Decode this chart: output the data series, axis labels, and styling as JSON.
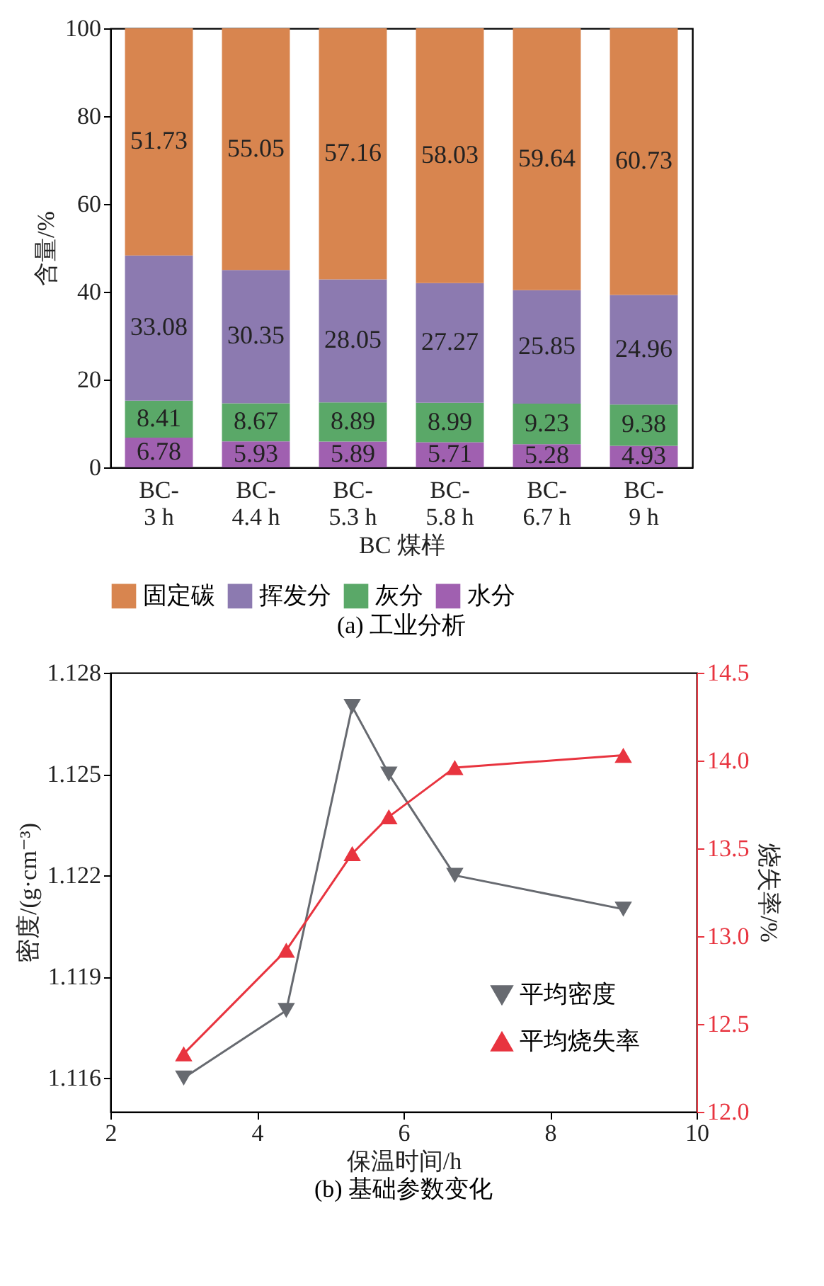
{
  "chart_data": [
    {
      "type": "bar",
      "stacked": true,
      "title": "(a) 工业分析",
      "xlabel": "BC 煤样",
      "ylabel": "含量/%",
      "categories": [
        "BC-3 h",
        "BC-4.4 h",
        "BC-5.3 h",
        "BC-5.8 h",
        "BC-6.7 h",
        "BC-9 h"
      ],
      "series": [
        {
          "name": "水分",
          "color": "#a060b0",
          "values": [
            6.78,
            5.93,
            5.89,
            5.71,
            5.28,
            4.93
          ]
        },
        {
          "name": "灰分",
          "color": "#5aa868",
          "values": [
            8.41,
            8.67,
            8.89,
            8.99,
            9.23,
            9.38
          ]
        },
        {
          "name": "挥发分",
          "color": "#8c7ab0",
          "values": [
            33.08,
            30.35,
            28.05,
            27.27,
            25.85,
            24.96
          ]
        },
        {
          "name": "固定碳",
          "color": "#d8854f",
          "values": [
            51.73,
            55.05,
            57.16,
            58.03,
            59.64,
            60.73
          ]
        }
      ],
      "ylim": [
        0,
        100
      ],
      "yticks": [
        0,
        20,
        40,
        60,
        80,
        100
      ],
      "data_labels": true,
      "legend": "bottom",
      "grid": false
    },
    {
      "type": "line",
      "title": "(b) 基础参数变化",
      "xlabel": "保温时间/h",
      "ylabel": "密度/(g·cm⁻³)",
      "y2label": "烧失率/%",
      "x": [
        3,
        4.4,
        5.3,
        5.8,
        6.7,
        9
      ],
      "series": [
        {
          "name": "平均密度",
          "color": "#676a70",
          "marker": "triangle-down",
          "values": [
            1.116,
            1.118,
            1.127,
            1.125,
            1.122,
            1.121
          ]
        },
        {
          "name": "平均烧失率",
          "color": "#e8343f",
          "marker": "triangle",
          "axis": "y2",
          "values": [
            12.33,
            12.92,
            13.47,
            13.68,
            13.96,
            14.03
          ]
        }
      ],
      "xlim": [
        2,
        10
      ],
      "xticks": [
        2,
        4,
        6,
        8,
        10
      ],
      "ylim": [
        1.115,
        1.128
      ],
      "yticks": [
        1.116,
        1.119,
        1.122,
        1.125,
        1.128
      ],
      "y2lim": [
        12,
        14.5
      ],
      "y2ticks": [
        {
          "value": 12,
          "label": "12.0"
        },
        {
          "value": 12.5,
          "label": "12.5"
        },
        {
          "value": 13,
          "label": "13.0"
        },
        {
          "value": 13.5,
          "label": "13.5"
        },
        {
          "value": 14,
          "label": "14.0"
        },
        {
          "value": 14.5,
          "label": "14.5"
        }
      ],
      "legend": "bottom right",
      "grid": false
    }
  ]
}
